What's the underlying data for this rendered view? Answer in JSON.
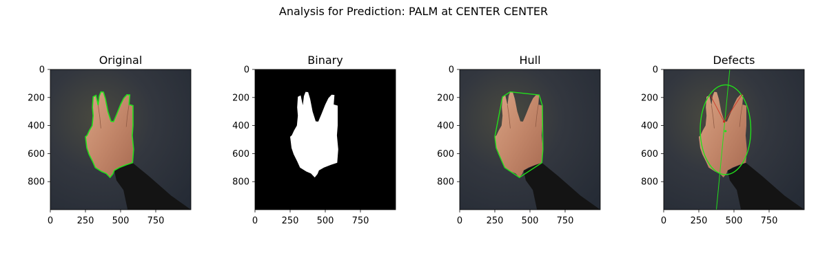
{
  "chart_data": {
    "type": "image-grid",
    "title": "Analysis for Prediction: PALM at CENTER CENTER",
    "image_extent": {
      "x": [
        0,
        1000
      ],
      "y": [
        0,
        1000
      ]
    },
    "x_ticks": [
      0,
      250,
      500,
      750
    ],
    "y_ticks": [
      0,
      200,
      400,
      600,
      800
    ],
    "panels": [
      {
        "title": "Original",
        "content": "photo",
        "overlay": "contour"
      },
      {
        "title": "Binary",
        "content": "mask",
        "overlay": "none"
      },
      {
        "title": "Hull",
        "content": "photo",
        "overlay": "hull"
      },
      {
        "title": "Defects",
        "content": "photo",
        "overlay": "ellipse-axis"
      }
    ],
    "hand_contour": [
      [
        250,
        480
      ],
      [
        262,
        470
      ],
      [
        278,
        435
      ],
      [
        298,
        400
      ],
      [
        305,
        330
      ],
      [
        300,
        270
      ],
      [
        305,
        195
      ],
      [
        325,
        185
      ],
      [
        340,
        255
      ],
      [
        348,
        190
      ],
      [
        360,
        160
      ],
      [
        378,
        162
      ],
      [
        392,
        210
      ],
      [
        410,
        300
      ],
      [
        432,
        370
      ],
      [
        450,
        372
      ],
      [
        472,
        320
      ],
      [
        500,
        250
      ],
      [
        522,
        205
      ],
      [
        545,
        180
      ],
      [
        565,
        182
      ],
      [
        560,
        250
      ],
      [
        588,
        258
      ],
      [
        588,
        400
      ],
      [
        583,
        470
      ],
      [
        592,
        570
      ],
      [
        585,
        665
      ],
      [
        540,
        680
      ],
      [
        490,
        700
      ],
      [
        455,
        720
      ],
      [
        445,
        745
      ],
      [
        425,
        770
      ],
      [
        398,
        742
      ],
      [
        365,
        728
      ],
      [
        320,
        700
      ],
      [
        300,
        655
      ],
      [
        275,
        605
      ],
      [
        260,
        560
      ]
    ],
    "hull": [
      [
        250,
        480
      ],
      [
        305,
        195
      ],
      [
        360,
        160
      ],
      [
        545,
        180
      ],
      [
        565,
        182
      ],
      [
        588,
        258
      ],
      [
        592,
        570
      ],
      [
        585,
        665
      ],
      [
        425,
        770
      ],
      [
        320,
        700
      ],
      [
        300,
        655
      ],
      [
        260,
        560
      ]
    ],
    "ellipse": {
      "cx": 440,
      "cy": 430,
      "rx": 180,
      "ry": 320
    },
    "axis_line": {
      "x1": 375,
      "y1": 1000,
      "x2": 470,
      "y2": 0
    },
    "defect_marks": [
      [
        430,
        372
      ],
      [
        440,
        440
      ]
    ],
    "colors": {
      "contour": "#22e01c",
      "defect": "#cc2a1a",
      "mask_fg": "#ffffff",
      "mask_bg": "#000000",
      "background_photo": "#2e3440",
      "skin": "#c58a66",
      "sleeve": "#141414"
    }
  }
}
